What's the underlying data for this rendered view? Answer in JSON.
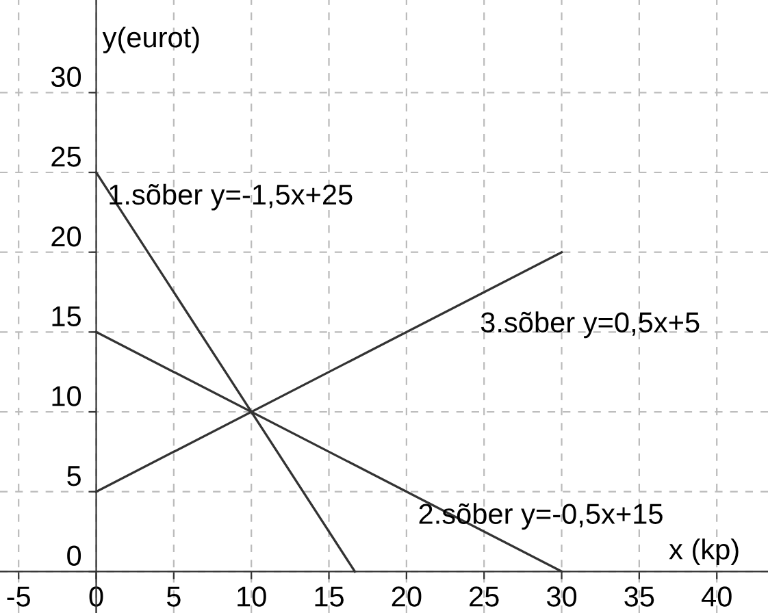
{
  "chart_data": {
    "type": "line",
    "xlabel": "x (kp)",
    "ylabel": "y(eurot)",
    "xlim": [
      -6.2,
      43.3
    ],
    "ylim": [
      -2.6,
      35.8
    ],
    "xticks": [
      -5,
      0,
      5,
      10,
      15,
      20,
      25,
      30,
      35,
      40
    ],
    "yticks": [
      0,
      5,
      10,
      15,
      20,
      25,
      30
    ],
    "grid": true,
    "line_style": "solid",
    "marker": "none",
    "series": [
      {
        "color": "#333333",
        "x": [
          0,
          16.67
        ],
        "values": [
          25,
          0
        ]
      },
      {
        "color": "#333333",
        "x": [
          0,
          30
        ],
        "values": [
          15,
          0
        ]
      },
      {
        "color": "#333333",
        "x": [
          0,
          30
        ],
        "values": [
          5,
          20
        ]
      }
    ],
    "annotations": [
      {
        "text": "1.sõber y=-1,5x+25",
        "x": 0,
        "y": 25
      },
      {
        "text": "2.sõber y=-0,5x+15",
        "x": 20,
        "y": 5
      },
      {
        "text": "3.sõber y=0,5x+5",
        "x": 24,
        "y": 17
      }
    ]
  }
}
